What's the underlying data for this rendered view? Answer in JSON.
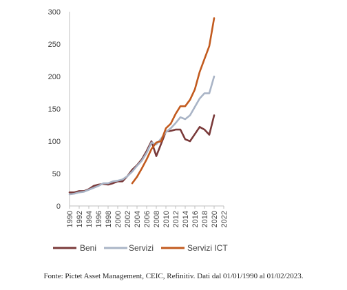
{
  "chart_data": {
    "type": "line",
    "x": [
      1990,
      1991,
      1992,
      1993,
      1994,
      1995,
      1996,
      1997,
      1998,
      1999,
      2000,
      2001,
      2002,
      2003,
      2004,
      2005,
      2006,
      2007,
      2008,
      2009,
      2010,
      2011,
      2012,
      2013,
      2014,
      2015,
      2016,
      2017,
      2018,
      2019,
      2020,
      2021
    ],
    "x_tick_labels": [
      "1990",
      "1992",
      "1994",
      "1996",
      "1998",
      "2000",
      "2002",
      "2004",
      "2006",
      "2008",
      "2010",
      "2012",
      "2014",
      "2016",
      "2018",
      "2020",
      "2022"
    ],
    "y_tick_labels": [
      "0",
      "50",
      "100",
      "150",
      "200",
      "250",
      "300"
    ],
    "xlim": [
      1990,
      2022
    ],
    "ylim": [
      0,
      300
    ],
    "grid": false,
    "legend_position": "bottom",
    "series": [
      {
        "name": "Beni",
        "color": "#7a3a3a",
        "values": [
          21,
          21,
          23,
          23,
          26,
          31,
          33,
          34,
          33,
          35,
          38,
          38,
          46,
          56,
          63,
          72,
          85,
          100,
          77,
          96,
          115,
          116,
          118,
          118,
          103,
          100,
          111,
          122,
          118,
          110,
          140,
          null
        ]
      },
      {
        "name": "Servizi",
        "color": "#a9b4c6",
        "values": [
          18,
          19,
          21,
          22,
          25,
          28,
          31,
          35,
          35,
          38,
          39,
          41,
          46,
          53,
          62,
          70,
          82,
          98,
          95,
          104,
          114,
          120,
          128,
          137,
          134,
          140,
          153,
          166,
          174,
          174,
          200,
          null
        ]
      },
      {
        "name": "Servizi ICT",
        "color": "#c25a1e",
        "values": [
          null,
          null,
          null,
          null,
          null,
          null,
          null,
          null,
          null,
          null,
          null,
          null,
          null,
          35,
          45,
          58,
          72,
          88,
          98,
          100,
          120,
          127,
          142,
          154,
          154,
          164,
          180,
          207,
          227,
          247,
          290,
          null
        ]
      }
    ]
  },
  "source_note": "Fonte: Pictet Asset Management, CEIC, Refinitiv. Dati dal 01/01/1990 al 01/02/2023."
}
